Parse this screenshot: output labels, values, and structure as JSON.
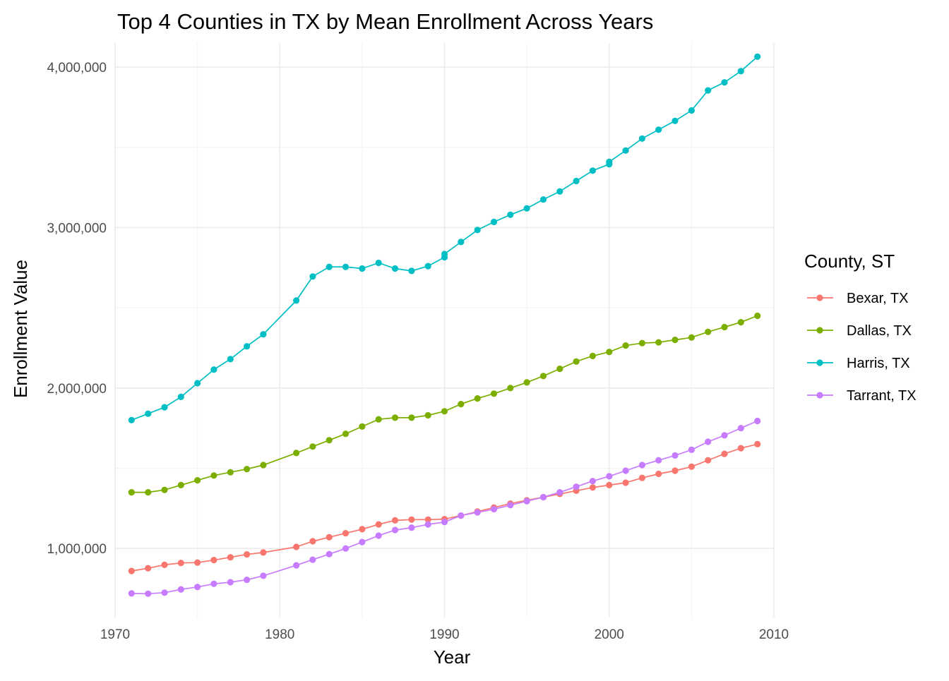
{
  "chart_data": {
    "type": "line",
    "title": "Top 4 Counties in TX by Mean Enrollment Across Years",
    "xlabel": "Year",
    "ylabel": "Enrollment Value",
    "xlim": [
      1970,
      2010
    ],
    "ylim": [
      570000,
      4150000
    ],
    "x_ticks": [
      1970,
      1980,
      1990,
      2000,
      2010
    ],
    "y_ticks": [
      1000000,
      2000000,
      3000000,
      4000000
    ],
    "y_tick_labels": [
      "1,000,000",
      "2,000,000",
      "3,000,000",
      "4,000,000"
    ],
    "grid": true,
    "legend": {
      "title": "County, ST",
      "placement": "right"
    },
    "series": [
      {
        "name": "Bexar, TX",
        "color": "#F8766D",
        "points": [
          [
            1971,
            860000
          ],
          [
            1972,
            877000
          ],
          [
            1973,
            898000
          ],
          [
            1974,
            910000
          ],
          [
            1975,
            912000
          ],
          [
            1976,
            928000
          ],
          [
            1977,
            945000
          ],
          [
            1978,
            963000
          ],
          [
            1979,
            975000
          ],
          [
            1981,
            1010000
          ],
          [
            1982,
            1045000
          ],
          [
            1983,
            1070000
          ],
          [
            1984,
            1095000
          ],
          [
            1985,
            1120000
          ],
          [
            1986,
            1150000
          ],
          [
            1987,
            1175000
          ],
          [
            1988,
            1180000
          ],
          [
            1989,
            1180000
          ],
          [
            1990,
            1183000
          ],
          [
            1991,
            1205000
          ],
          [
            1992,
            1230000
          ],
          [
            1993,
            1255000
          ],
          [
            1994,
            1280000
          ],
          [
            1995,
            1300000
          ],
          [
            1996,
            1320000
          ],
          [
            1997,
            1340000
          ],
          [
            1998,
            1360000
          ],
          [
            1999,
            1380000
          ],
          [
            2000,
            1395000
          ],
          [
            2001,
            1410000
          ],
          [
            2002,
            1440000
          ],
          [
            2003,
            1465000
          ],
          [
            2004,
            1485000
          ],
          [
            2005,
            1510000
          ],
          [
            2006,
            1550000
          ],
          [
            2007,
            1590000
          ],
          [
            2008,
            1625000
          ],
          [
            2009,
            1650000
          ]
        ]
      },
      {
        "name": "Dallas, TX",
        "color": "#7CAE00",
        "points": [
          [
            1971,
            1350000
          ],
          [
            1972,
            1350000
          ],
          [
            1973,
            1365000
          ],
          [
            1974,
            1395000
          ],
          [
            1975,
            1425000
          ],
          [
            1976,
            1455000
          ],
          [
            1977,
            1475000
          ],
          [
            1978,
            1495000
          ],
          [
            1979,
            1520000
          ],
          [
            1981,
            1595000
          ],
          [
            1982,
            1635000
          ],
          [
            1983,
            1675000
          ],
          [
            1984,
            1715000
          ],
          [
            1985,
            1760000
          ],
          [
            1986,
            1805000
          ],
          [
            1987,
            1815000
          ],
          [
            1988,
            1815000
          ],
          [
            1989,
            1830000
          ],
          [
            1990,
            1855000
          ],
          [
            1991,
            1900000
          ],
          [
            1992,
            1935000
          ],
          [
            1993,
            1965000
          ],
          [
            1994,
            2000000
          ],
          [
            1995,
            2035000
          ],
          [
            1996,
            2075000
          ],
          [
            1997,
            2120000
          ],
          [
            1998,
            2165000
          ],
          [
            1999,
            2200000
          ],
          [
            2000,
            2225000
          ],
          [
            2001,
            2265000
          ],
          [
            2002,
            2280000
          ],
          [
            2003,
            2285000
          ],
          [
            2004,
            2300000
          ],
          [
            2005,
            2315000
          ],
          [
            2006,
            2350000
          ],
          [
            2007,
            2380000
          ],
          [
            2008,
            2410000
          ],
          [
            2009,
            2450000
          ]
        ]
      },
      {
        "name": "Harris, TX",
        "color": "#00BFC4",
        "points": [
          [
            1971,
            1800000
          ],
          [
            1972,
            1840000
          ],
          [
            1973,
            1880000
          ],
          [
            1974,
            1945000
          ],
          [
            1975,
            2030000
          ],
          [
            1976,
            2115000
          ],
          [
            1977,
            2180000
          ],
          [
            1978,
            2260000
          ],
          [
            1979,
            2335000
          ],
          [
            1981,
            2545000
          ],
          [
            1982,
            2695000
          ],
          [
            1983,
            2755000
          ],
          [
            1984,
            2755000
          ],
          [
            1985,
            2745000
          ],
          [
            1986,
            2780000
          ],
          [
            1987,
            2745000
          ],
          [
            1988,
            2730000
          ],
          [
            1989,
            2760000
          ],
          [
            1990,
            2815000
          ],
          [
            1990,
            2835000
          ],
          [
            1991,
            2910000
          ],
          [
            1992,
            2985000
          ],
          [
            1993,
            3035000
          ],
          [
            1994,
            3080000
          ],
          [
            1995,
            3120000
          ],
          [
            1996,
            3175000
          ],
          [
            1997,
            3225000
          ],
          [
            1998,
            3290000
          ],
          [
            1999,
            3355000
          ],
          [
            2000,
            3395000
          ],
          [
            2000,
            3410000
          ],
          [
            2001,
            3480000
          ],
          [
            2002,
            3555000
          ],
          [
            2003,
            3610000
          ],
          [
            2004,
            3665000
          ],
          [
            2005,
            3730000
          ],
          [
            2006,
            3855000
          ],
          [
            2007,
            3905000
          ],
          [
            2008,
            3975000
          ],
          [
            2009,
            4065000
          ]
        ]
      },
      {
        "name": "Tarrant, TX",
        "color": "#C77CFF",
        "points": [
          [
            1971,
            720000
          ],
          [
            1972,
            718000
          ],
          [
            1973,
            725000
          ],
          [
            1974,
            745000
          ],
          [
            1975,
            760000
          ],
          [
            1976,
            780000
          ],
          [
            1977,
            790000
          ],
          [
            1978,
            805000
          ],
          [
            1979,
            830000
          ],
          [
            1981,
            895000
          ],
          [
            1982,
            930000
          ],
          [
            1983,
            965000
          ],
          [
            1984,
            1000000
          ],
          [
            1985,
            1040000
          ],
          [
            1986,
            1080000
          ],
          [
            1987,
            1115000
          ],
          [
            1988,
            1130000
          ],
          [
            1989,
            1150000
          ],
          [
            1990,
            1165000
          ],
          [
            1991,
            1205000
          ],
          [
            1992,
            1225000
          ],
          [
            1993,
            1245000
          ],
          [
            1994,
            1270000
          ],
          [
            1995,
            1295000
          ],
          [
            1996,
            1320000
          ],
          [
            1997,
            1350000
          ],
          [
            1998,
            1385000
          ],
          [
            1999,
            1420000
          ],
          [
            2000,
            1450000
          ],
          [
            2001,
            1485000
          ],
          [
            2002,
            1520000
          ],
          [
            2003,
            1550000
          ],
          [
            2004,
            1580000
          ],
          [
            2005,
            1615000
          ],
          [
            2006,
            1665000
          ],
          [
            2007,
            1705000
          ],
          [
            2008,
            1750000
          ],
          [
            2009,
            1795000
          ]
        ]
      }
    ]
  }
}
